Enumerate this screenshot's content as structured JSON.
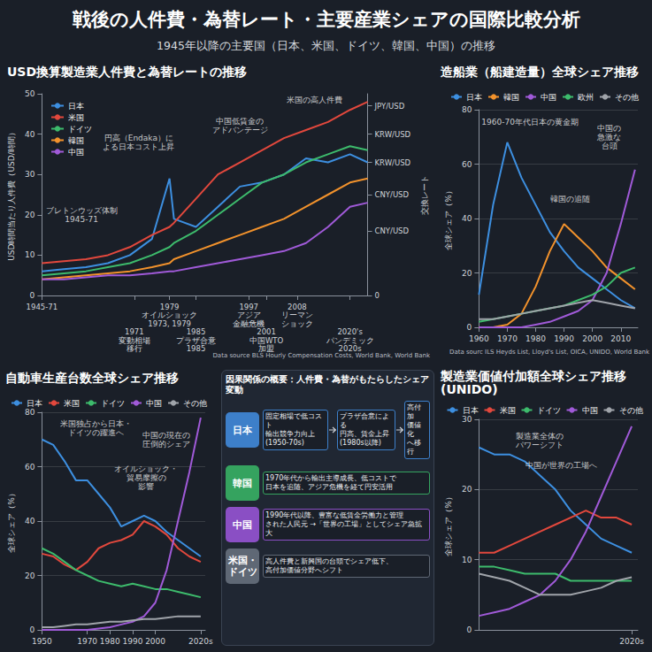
{
  "title": "戦後の人件費・為替レート・主要産業シェアの国際比較分析",
  "subtitle": "1945年以降の主要国（日本、米国、ドイツ、韓国、中国）の推移",
  "chart_data": [
    {
      "type": "line",
      "title": "USD換算製造業人件費と為替レートの推移",
      "ylabel": "USD時間当たり人件費（USD/時間）",
      "y2label": "交換レート",
      "source": "Data source BLS Hourly Compensation Costs, World Bank, World Bank",
      "x": [
        1950,
        1955,
        1960,
        1965,
        1970,
        1975,
        1979,
        1980,
        1985,
        1990,
        1995,
        2000,
        2005,
        2010,
        2015,
        2020,
        2024
      ],
      "series": [
        {
          "name": "日本",
          "color": "#3d8fe0",
          "values": [
            6,
            6.5,
            7,
            8,
            10,
            14,
            29,
            19,
            17,
            22,
            27,
            28,
            30,
            34,
            33,
            35,
            33
          ]
        },
        {
          "name": "米国",
          "color": "#e2483d",
          "values": [
            8,
            8.5,
            9,
            10,
            12,
            15,
            17,
            18,
            24,
            30,
            33,
            36,
            39,
            41,
            43,
            46,
            48
          ]
        },
        {
          "name": "ドイツ",
          "color": "#3dbb6c",
          "values": [
            5,
            5.5,
            6,
            7,
            8,
            10,
            12,
            13,
            16,
            20,
            24,
            28,
            30,
            33,
            35,
            37,
            36
          ]
        },
        {
          "name": "韓国",
          "color": "#f2922c",
          "values": [
            4,
            4.5,
            5,
            5.5,
            6,
            7,
            8,
            9,
            11,
            13,
            15,
            17,
            19,
            22,
            25,
            28,
            29
          ]
        },
        {
          "name": "中国",
          "color": "#a05ad8",
          "values": [
            4,
            4,
            4.5,
            5,
            5,
            5.5,
            6,
            6,
            7,
            8,
            9,
            10,
            11,
            13,
            17,
            22,
            23
          ]
        }
      ],
      "xlim": [
        1950,
        2024
      ],
      "xticks": [
        {
          "value": 1950,
          "label": "1945-71"
        },
        1971,
        1979,
        1985,
        1997,
        2001,
        2008,
        {
          "value": 2020,
          "label": "2020's"
        }
      ],
      "ylim": [
        0,
        50
      ],
      "yticks": [
        0,
        10,
        20,
        30,
        40,
        50
      ],
      "y2lim": [
        0,
        50
      ],
      "y2ticks": [
        0,
        {
          "value": 16,
          "label": "CNY/USD"
        },
        {
          "value": 25,
          "label": "CNY/USD"
        },
        {
          "value": 33,
          "label": "KRW/USD"
        },
        {
          "value": 40,
          "label": "KRW/USD"
        },
        {
          "value": 47,
          "label": "JPY/USD"
        }
      ],
      "grid": false,
      "legend": "top-left",
      "events": [
        {
          "x": 1971,
          "text": "変動相場\n移行"
        },
        {
          "x": 1979,
          "text": "オイルショック\n1973, 1979"
        },
        {
          "x": 1985,
          "text": "プラザ合意\n1985"
        },
        {
          "x": 1997,
          "text": "アジア\n金融危機"
        },
        {
          "x": 2001,
          "text": "中国WTO\n加盟"
        },
        {
          "x": 2008,
          "text": "リーマン\nショック"
        },
        {
          "x": 2020,
          "text": "パンデミック\n2020s"
        }
      ],
      "annotations": [
        {
          "text": "ブレトンウッズ体制\n1945-71",
          "x": 1959,
          "y": 20
        },
        {
          "text": "円高（Endaka）に\nよる日本コスト上昇",
          "x": 1972,
          "y": 38
        },
        {
          "text": "中国低賃金の\nアドバンテージ",
          "x": 1995,
          "y": 42
        },
        {
          "text": "米国の高人件費",
          "x": 2012,
          "y": 48.5
        }
      ]
    },
    {
      "type": "line",
      "title": "造船業（船建造量）全球シェア推移",
      "ylabel": "全球シェア（%）",
      "source": "Data sourc ILS Heyds List, Lloyd's List, OICA, UNIDO, World Bank",
      "x": [
        1960,
        1965,
        1970,
        1975,
        1980,
        1985,
        1990,
        1995,
        2000,
        2005,
        2010,
        2015
      ],
      "series": [
        {
          "name": "日本",
          "color": "#3d8fe0",
          "values": [
            12,
            45,
            68,
            55,
            45,
            35,
            28,
            22,
            18,
            14,
            10,
            7
          ]
        },
        {
          "name": "韓国",
          "color": "#f2922c",
          "values": [
            0,
            0,
            1,
            5,
            15,
            28,
            38,
            33,
            28,
            22,
            18,
            14
          ]
        },
        {
          "name": "中国",
          "color": "#a05ad8",
          "values": [
            0,
            0,
            0,
            0,
            1,
            2,
            4,
            6,
            10,
            20,
            38,
            58
          ]
        },
        {
          "name": "欧州",
          "color": "#3dbb6c",
          "values": [
            2,
            3,
            4,
            5,
            6,
            7,
            8,
            10,
            12,
            15,
            20,
            22
          ]
        },
        {
          "name": "その他",
          "color": "#a0a4aa",
          "values": [
            3,
            3,
            4,
            5,
            6,
            7,
            8,
            9,
            10,
            9,
            8,
            7
          ]
        }
      ],
      "xlim": [
        1960,
        2016
      ],
      "xticks": [
        1960,
        1970,
        1980,
        1990,
        2000,
        2010
      ],
      "ylim": [
        0,
        80
      ],
      "yticks": [
        0,
        20,
        40,
        60,
        80
      ],
      "grid": true,
      "legend": "top",
      "annotations": [
        {
          "text": "1960-70年代日本の黄金期",
          "x": 1978,
          "y": 75.5
        },
        {
          "text": "韓国の追随",
          "x": 1992,
          "y": 47
        },
        {
          "text": "中国の\n急激な\n台頭",
          "x": 2006,
          "y": 70
        }
      ]
    },
    {
      "type": "line",
      "title": "自動車生産台数全球シェア推移",
      "ylabel": "全球シェア（%）",
      "x": [
        1950,
        1955,
        1960,
        1965,
        1970,
        1975,
        1980,
        1985,
        1990,
        1995,
        2000,
        2005,
        2010,
        2015,
        2020
      ],
      "series": [
        {
          "name": "日本",
          "color": "#3d8fe0",
          "values": [
            70,
            68,
            62,
            55,
            55,
            50,
            45,
            38,
            40,
            42,
            40,
            36,
            33,
            30,
            27
          ]
        },
        {
          "name": "米国",
          "color": "#e2483d",
          "values": [
            28,
            27,
            24,
            22,
            25,
            30,
            32,
            33,
            35,
            40,
            38,
            35,
            30,
            27,
            25
          ]
        },
        {
          "name": "ドイツ",
          "color": "#3dbb6c",
          "values": [
            30,
            28,
            25,
            22,
            20,
            18,
            17,
            16,
            17,
            16,
            15,
            15,
            14,
            13,
            12
          ]
        },
        {
          "name": "中国",
          "color": "#a05ad8",
          "values": [
            0,
            0,
            0,
            0,
            0,
            0.5,
            1,
            2,
            3,
            5,
            10,
            22,
            40,
            58,
            78
          ]
        },
        {
          "name": "その他",
          "color": "#a0a4aa",
          "values": [
            1,
            1,
            1.5,
            2,
            2,
            2.5,
            3,
            3,
            3.5,
            4,
            4,
            4.5,
            5,
            5,
            5
          ]
        }
      ],
      "xlim": [
        1950,
        2022
      ],
      "xticks": [
        1950,
        1970,
        1980,
        1990,
        2000,
        {
          "value": 2020,
          "label": "2020s"
        }
      ],
      "ylim": [
        0,
        80
      ],
      "yticks": [
        0,
        20,
        40,
        60,
        80
      ],
      "grid": true,
      "legend": "top",
      "annotations": [
        {
          "text": "米国独占から日本・\nドイツの躍進へ",
          "x": 1974,
          "y": 74
        },
        {
          "text": "中国の現在の\n圧倒的シェア",
          "x": 2005,
          "y": 70
        },
        {
          "text": "オイルショック・\n貿易摩擦の\n影響",
          "x": 1996,
          "y": 56
        }
      ]
    },
    {
      "type": "line",
      "title": "製造業価値付加額全球シェア推移 (UNIDO)",
      "ylabel": "全球シェア（%）",
      "x": [
        1970,
        1975,
        1980,
        1985,
        1990,
        1995,
        2000,
        2005,
        2010,
        2015,
        2020
      ],
      "series": [
        {
          "name": "日本",
          "color": "#3d8fe0",
          "values": [
            26,
            25,
            25,
            24,
            22,
            20,
            17,
            15,
            13,
            12,
            11
          ]
        },
        {
          "name": "米国",
          "color": "#e2483d",
          "values": [
            11,
            11,
            12,
            13,
            14,
            15,
            16,
            17,
            16,
            16,
            15
          ]
        },
        {
          "name": "ドイツ",
          "color": "#3dbb6c",
          "values": [
            9,
            9,
            8.5,
            8,
            8,
            8,
            7,
            7,
            7,
            7,
            7
          ]
        },
        {
          "name": "中国",
          "color": "#a05ad8",
          "values": [
            2,
            2.5,
            3,
            4,
            5,
            7,
            10,
            14,
            19,
            24,
            29
          ]
        },
        {
          "name": "その他",
          "color": "#a0a4aa",
          "values": [
            8,
            7.5,
            7,
            6,
            5,
            5,
            5,
            5.5,
            6,
            7,
            7.5
          ]
        }
      ],
      "xlim": [
        1970,
        2022
      ],
      "xticks": [
        {
          "value": 2020,
          "label": "2020s"
        }
      ],
      "ylim": [
        0,
        30
      ],
      "yticks": [
        0,
        10,
        20,
        30
      ],
      "grid": true,
      "legend": "top",
      "annotations": [
        {
          "text": "製造業全体の\nパワーシフト",
          "x": 1990,
          "y": 27
        },
        {
          "text": "中国が世界の工場へ",
          "x": 1997,
          "y": 23.5
        }
      ]
    }
  ],
  "diagram": {
    "title": "因果関係の概要：人件費・為替がもたらしたシェア変動",
    "rows": [
      {
        "label": "日本",
        "color": "#3d7fc9",
        "steps": [
          "固定相場で低コスト\n輸出競争力向上\n(1950-70s)",
          "プラザ合意による\n円高、賃金上昇\n(1980s以降)",
          "高付加\n価値化\nへ移行"
        ]
      },
      {
        "label": "韓国",
        "color": "#35a35f",
        "steps": [
          "1970年代から輸出主導成長、低コストで\n日本を追随、アジア危機を経て円安活用"
        ]
      },
      {
        "label": "中国",
        "color": "#8a4fc4",
        "steps": [
          "1990年代以降、豊富な低賃金労働力と管理\nされた人民元 →「世界の工場」としてシェア急拡大"
        ]
      },
      {
        "label": "米国・\nドイツ",
        "color": "#5f6875",
        "steps": [
          "高人件費と新興国の台頭でシェア低下、\n高付加価値分野へシフト"
        ]
      }
    ]
  }
}
